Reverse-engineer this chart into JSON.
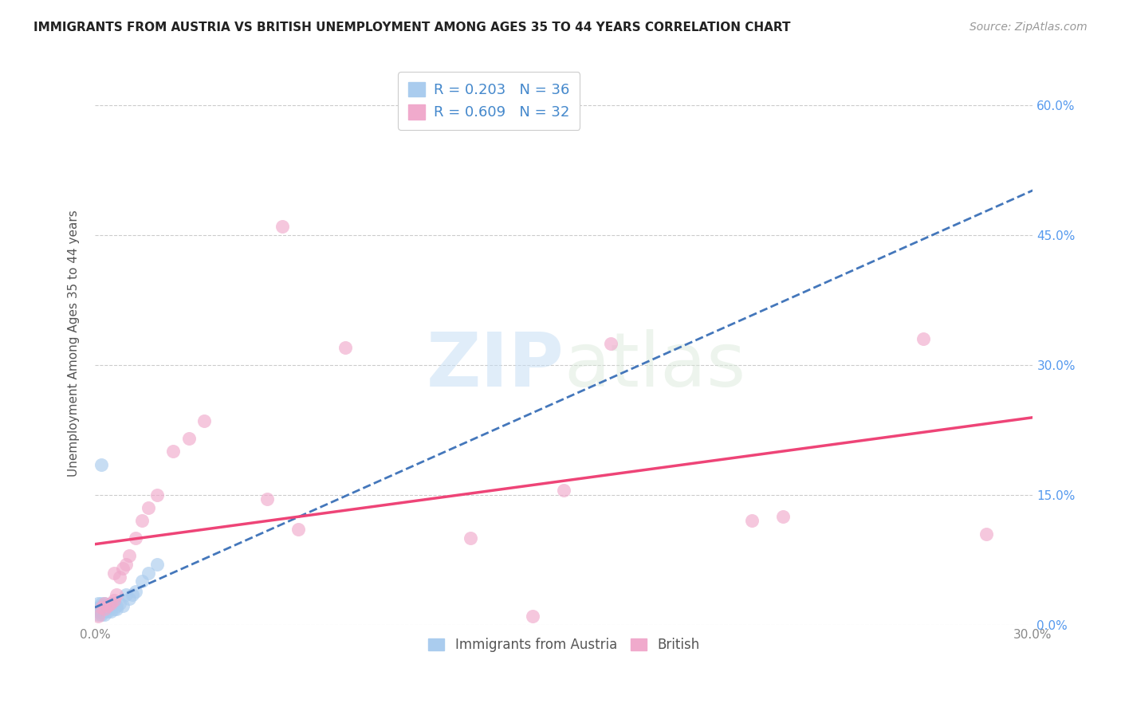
{
  "title": "IMMIGRANTS FROM AUSTRIA VS BRITISH UNEMPLOYMENT AMONG AGES 35 TO 44 YEARS CORRELATION CHART",
  "source": "Source: ZipAtlas.com",
  "ylabel": "Unemployment Among Ages 35 to 44 years",
  "xlim": [
    0.0,
    0.3
  ],
  "ylim": [
    0.0,
    0.65
  ],
  "legend_labels": [
    "Immigrants from Austria",
    "British"
  ],
  "austria_R": 0.203,
  "austria_N": 36,
  "british_R": 0.609,
  "british_N": 32,
  "austria_color": "#aaccee",
  "british_color": "#f0aacc",
  "austria_line_color": "#4477bb",
  "british_line_color": "#ee4477",
  "austria_points_x": [
    0.001,
    0.001,
    0.001,
    0.001,
    0.001,
    0.002,
    0.002,
    0.002,
    0.002,
    0.002,
    0.002,
    0.003,
    0.003,
    0.003,
    0.003,
    0.003,
    0.004,
    0.004,
    0.004,
    0.005,
    0.005,
    0.005,
    0.006,
    0.006,
    0.007,
    0.007,
    0.008,
    0.009,
    0.01,
    0.011,
    0.012,
    0.013,
    0.015,
    0.017,
    0.02,
    0.002
  ],
  "austria_points_y": [
    0.025,
    0.02,
    0.018,
    0.015,
    0.012,
    0.025,
    0.022,
    0.02,
    0.018,
    0.015,
    0.012,
    0.025,
    0.022,
    0.018,
    0.015,
    0.012,
    0.022,
    0.018,
    0.015,
    0.025,
    0.02,
    0.015,
    0.025,
    0.018,
    0.022,
    0.018,
    0.025,
    0.022,
    0.035,
    0.03,
    0.035,
    0.038,
    0.05,
    0.06,
    0.07,
    0.185
  ],
  "british_points_x": [
    0.001,
    0.002,
    0.003,
    0.003,
    0.004,
    0.005,
    0.006,
    0.006,
    0.007,
    0.008,
    0.009,
    0.01,
    0.011,
    0.013,
    0.015,
    0.017,
    0.02,
    0.025,
    0.03,
    0.035,
    0.055,
    0.06,
    0.065,
    0.08,
    0.12,
    0.14,
    0.15,
    0.165,
    0.21,
    0.22,
    0.265,
    0.285
  ],
  "british_points_y": [
    0.01,
    0.02,
    0.018,
    0.025,
    0.022,
    0.025,
    0.028,
    0.06,
    0.035,
    0.055,
    0.065,
    0.07,
    0.08,
    0.1,
    0.12,
    0.135,
    0.15,
    0.2,
    0.215,
    0.235,
    0.145,
    0.46,
    0.11,
    0.32,
    0.1,
    0.01,
    0.155,
    0.325,
    0.12,
    0.125,
    0.33,
    0.105
  ],
  "watermark_zip": "ZIP",
  "watermark_atlas": "atlas",
  "background_color": "#ffffff",
  "grid_color": "#cccccc"
}
